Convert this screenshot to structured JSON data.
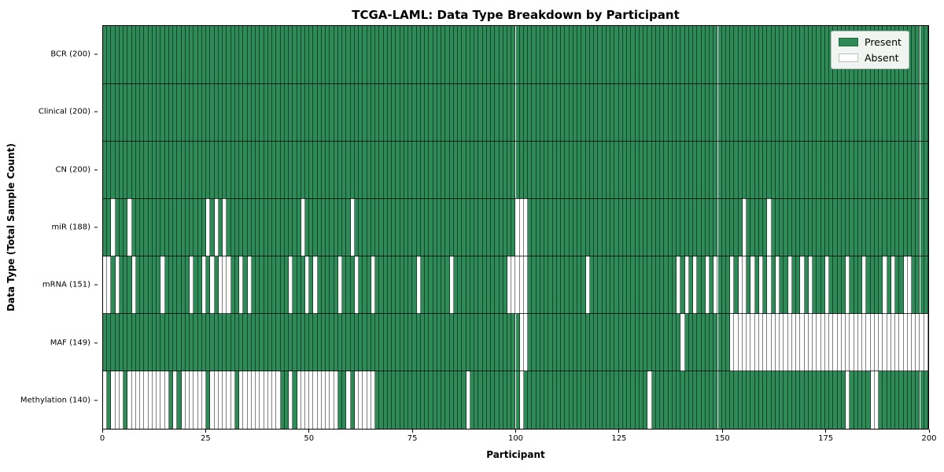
{
  "figure": {
    "title": "TCGA-LAML: Data Type Breakdown by Participant",
    "xlabel": "Participant",
    "ylabel": "Data Type (Total Sample Count)"
  },
  "legend": {
    "items": [
      {
        "label": "Present",
        "color": "#2e8b57"
      },
      {
        "label": "Absent",
        "color": "#ffffff"
      }
    ]
  },
  "chart_data": {
    "type": "heatmap",
    "title": "TCGA-LAML: Data Type Breakdown by Participant",
    "xlabel": "Participant",
    "ylabel": "Data Type (Total Sample Count)",
    "legend": [
      "Present",
      "Absent"
    ],
    "legend_position": "upper right",
    "grid": false,
    "n_participants": 200,
    "x_range": [
      0,
      200
    ],
    "x_ticks": [
      0,
      25,
      50,
      75,
      100,
      125,
      150,
      175,
      200
    ],
    "colors": {
      "present": "#2e8b57",
      "absent": "#ffffff",
      "cell_edge": "rgba(0,0,0,0.5)",
      "row_separator": "#000000"
    },
    "rows": [
      {
        "name": "BCR",
        "label": "BCR (200)",
        "present_count": 200,
        "absent_participants": []
      },
      {
        "name": "Clinical",
        "label": "Clinical (200)",
        "present_count": 200,
        "absent_participants": []
      },
      {
        "name": "CN",
        "label": "CN (200)",
        "present_count": 200,
        "absent_participants": []
      },
      {
        "name": "miR",
        "label": "miR (188)",
        "present_count": 188,
        "absent_participants": [
          2,
          6,
          25,
          27,
          29,
          48,
          60,
          100,
          101,
          102,
          155,
          161
        ]
      },
      {
        "name": "mRNA",
        "label": "mRNA (151)",
        "present_count": 151,
        "absent_participants": [
          0,
          1,
          3,
          7,
          14,
          21,
          24,
          26,
          28,
          29,
          30,
          33,
          35,
          45,
          49,
          51,
          57,
          61,
          65,
          76,
          84,
          98,
          99,
          100,
          101,
          102,
          117,
          139,
          141,
          143,
          146,
          148,
          152,
          154,
          155,
          157,
          159,
          161,
          163,
          166,
          169,
          171,
          175,
          180,
          184,
          189,
          191,
          194,
          195
        ]
      },
      {
        "name": "MAF",
        "label": "MAF (149)",
        "present_count": 149,
        "absent_participants": [
          101,
          102,
          140,
          152,
          153,
          154,
          155,
          156,
          157,
          158,
          159,
          160,
          161,
          162,
          163,
          164,
          165,
          166,
          167,
          168,
          169,
          170,
          171,
          172,
          173,
          174,
          175,
          176,
          177,
          178,
          179,
          180,
          181,
          182,
          183,
          184,
          185,
          186,
          187,
          188,
          189,
          190,
          191,
          192,
          193,
          194,
          195,
          196,
          197,
          198,
          199
        ]
      },
      {
        "name": "Methylation",
        "label": "Methylation (140)",
        "present_count": 140,
        "absent_participants": [
          0,
          2,
          3,
          4,
          6,
          7,
          8,
          9,
          10,
          11,
          12,
          13,
          14,
          15,
          17,
          19,
          20,
          21,
          22,
          23,
          24,
          26,
          27,
          28,
          29,
          30,
          31,
          33,
          34,
          35,
          36,
          37,
          38,
          39,
          40,
          41,
          42,
          45,
          47,
          48,
          49,
          50,
          51,
          52,
          53,
          54,
          55,
          56,
          59,
          61,
          62,
          63,
          64,
          65,
          88,
          101,
          132,
          180,
          186,
          187
        ]
      }
    ]
  }
}
